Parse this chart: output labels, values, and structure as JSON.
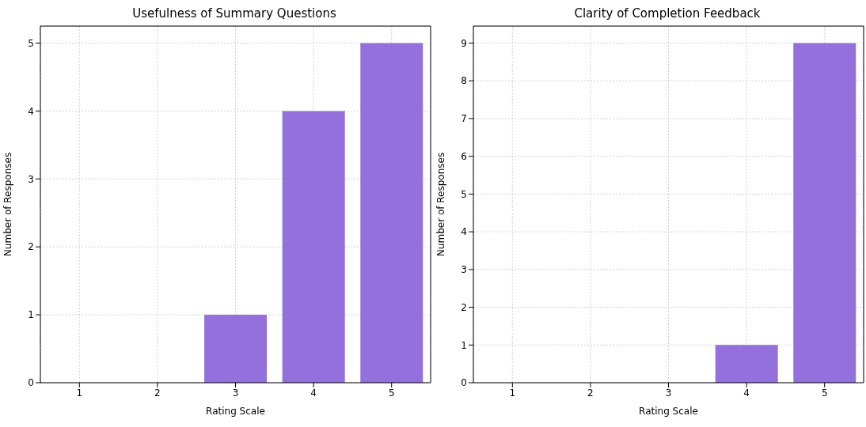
{
  "chart_data": [
    {
      "type": "bar",
      "title": "Usefulness of Summary Questions",
      "xlabel": "Rating Scale",
      "ylabel": "Number of Responses",
      "categories": [
        "1",
        "2",
        "3",
        "4",
        "5"
      ],
      "values": [
        0,
        0,
        1,
        4,
        5
      ],
      "color": "#9370db",
      "ylim": [
        0,
        5.25
      ],
      "yticks": [
        0,
        1,
        2,
        3,
        4,
        5
      ],
      "grid": true
    },
    {
      "type": "bar",
      "title": "Clarity of Completion Feedback",
      "xlabel": "Rating Scale",
      "ylabel": "Number of Responses",
      "categories": [
        "1",
        "2",
        "3",
        "4",
        "5"
      ],
      "values": [
        0,
        0,
        0,
        1,
        9
      ],
      "color": "#9370db",
      "ylim": [
        0,
        9.45
      ],
      "yticks": [
        0,
        1,
        2,
        3,
        4,
        5,
        6,
        7,
        8,
        9
      ],
      "grid": true
    }
  ]
}
